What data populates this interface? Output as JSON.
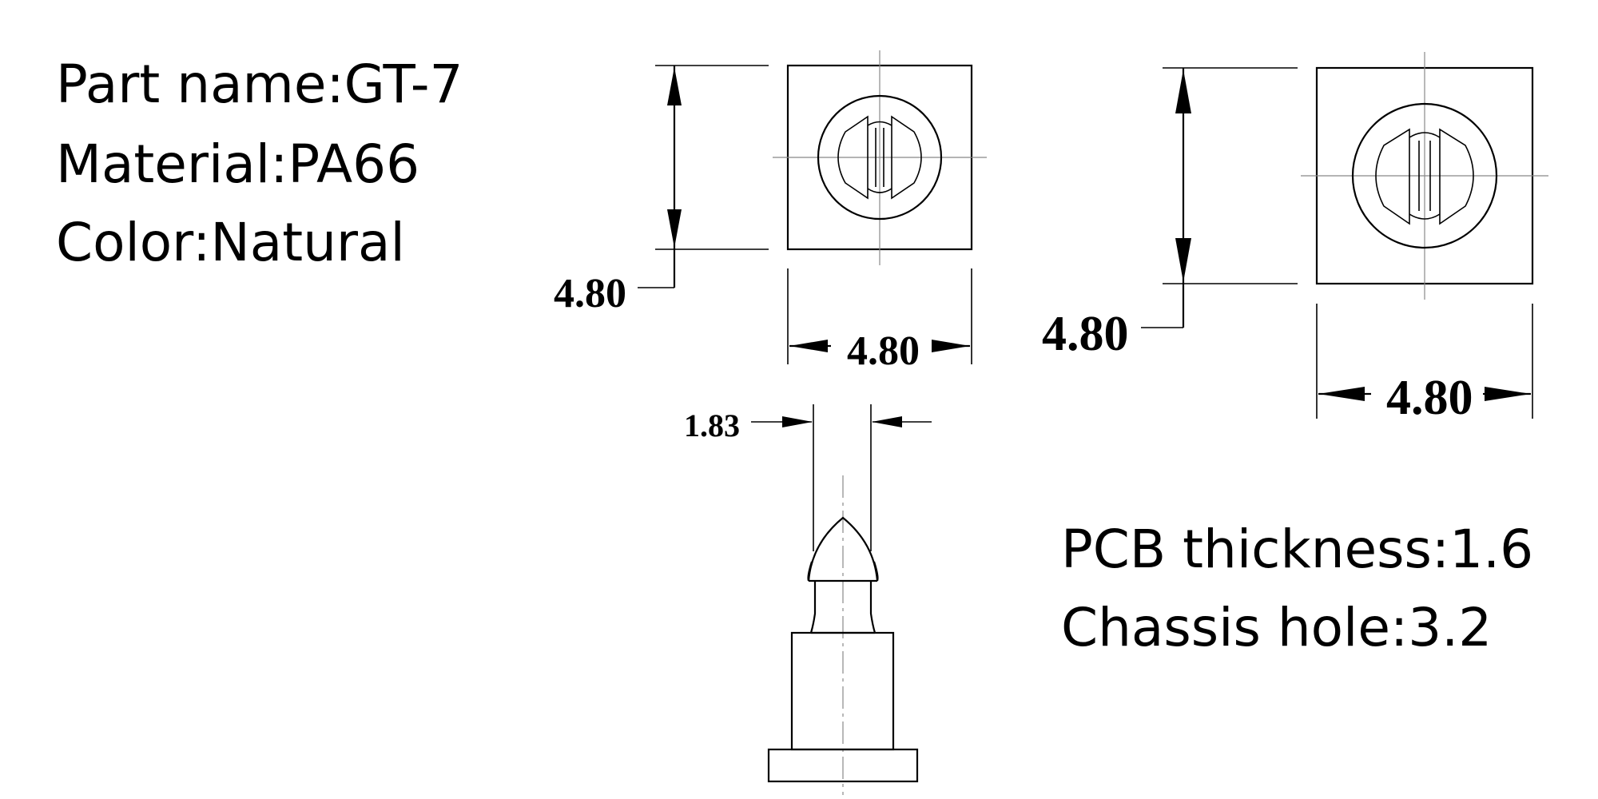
{
  "specs": {
    "part_name": "Part name:GT-7",
    "material": "Material:PA66",
    "color": "Color:Natural"
  },
  "notes": {
    "pcb_thickness": "PCB thickness:1.6",
    "chassis_hole": "Chassis hole:3.2"
  },
  "dimensions": {
    "top_view_1_height": "4.80",
    "top_view_1_width": "4.80",
    "top_view_2_height": "4.80",
    "top_view_2_width": "4.80",
    "side_view_pin_width": "1.83"
  },
  "colors": {
    "line": "#000000",
    "centerline": "#888888",
    "background": "#ffffff"
  }
}
